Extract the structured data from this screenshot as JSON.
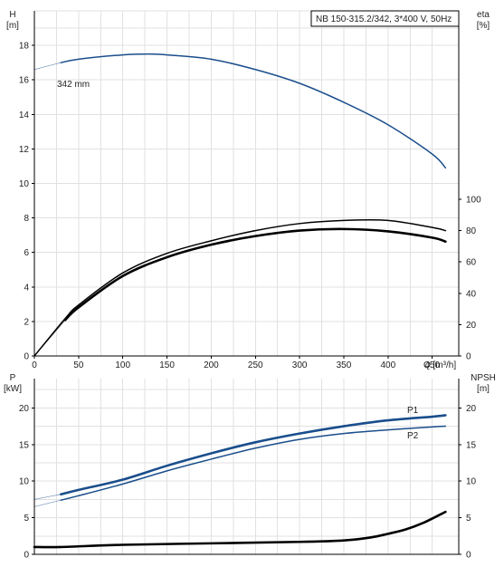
{
  "chart_data": [
    {
      "type": "line",
      "panel": "head-efficiency",
      "title": "NB 150-315.2/342, 3*400 V, 50Hz",
      "xlabel": "Q [m³/h]",
      "xlim": [
        0,
        480
      ],
      "xticks": [
        0,
        50,
        100,
        150,
        200,
        250,
        300,
        350,
        400,
        450
      ],
      "ylabel_left": "H\n[m]",
      "ylim_left": [
        0,
        20
      ],
      "yticks_left": [
        0,
        2,
        4,
        6,
        8,
        10,
        12,
        14,
        16,
        18
      ],
      "ylabel_right": "eta\n[%]",
      "ylim_right": [
        0,
        100
      ],
      "yticks_right": [
        0,
        20,
        40,
        60,
        80,
        100
      ],
      "grid": true,
      "series": [
        {
          "name": "342 mm",
          "axis": "left",
          "color": "#1a4e8c",
          "x": [
            0,
            30,
            50,
            100,
            130,
            150,
            200,
            250,
            300,
            350,
            400,
            450,
            465
          ],
          "y": [
            16.6,
            17.0,
            17.2,
            17.45,
            17.5,
            17.45,
            17.2,
            16.6,
            15.8,
            14.7,
            13.4,
            11.7,
            10.9
          ],
          "dashed_x_max": 30
        },
        {
          "name": "",
          "axis": "right",
          "color": "#000000",
          "x": [
            0,
            35,
            50,
            100,
            150,
            200,
            250,
            300,
            350,
            400,
            450,
            465
          ],
          "y": [
            0,
            23,
            31,
            51,
            63,
            71,
            76.5,
            80,
            81,
            79.5,
            75.5,
            73
          ],
          "dashed_x_max": 35,
          "bold": true
        },
        {
          "name": "",
          "axis": "right",
          "color": "#000000",
          "x": [
            0,
            35,
            50,
            100,
            150,
            200,
            250,
            300,
            350,
            400,
            450,
            465
          ],
          "y": [
            0,
            24,
            32.5,
            53,
            65.5,
            73.5,
            80,
            84.5,
            86.5,
            86.5,
            82,
            80
          ]
        }
      ]
    },
    {
      "type": "line",
      "panel": "power-npsh",
      "xlim": [
        0,
        480
      ],
      "ylabel_left": "P\n[kW]",
      "ylim_left": [
        0,
        24
      ],
      "yticks_left": [
        0,
        5,
        10,
        15,
        20
      ],
      "ylabel_right": "NPSH\n[m]",
      "ylim_right": [
        0,
        24
      ],
      "yticks_right": [
        0,
        5,
        10,
        15,
        20
      ],
      "grid": true,
      "series": [
        {
          "name": "P1",
          "axis": "left",
          "color": "#1a4e8c",
          "bold": true,
          "x": [
            0,
            30,
            50,
            100,
            150,
            200,
            250,
            300,
            350,
            400,
            450,
            465
          ],
          "y": [
            7.5,
            8.2,
            8.8,
            10.2,
            12.1,
            13.8,
            15.3,
            16.5,
            17.5,
            18.3,
            18.8,
            19.0
          ],
          "dashed_x_max": 30
        },
        {
          "name": "P2",
          "axis": "left",
          "color": "#1a4e8c",
          "x": [
            0,
            30,
            50,
            100,
            150,
            200,
            250,
            300,
            350,
            400,
            450,
            465
          ],
          "y": [
            6.5,
            7.4,
            8.0,
            9.6,
            11.4,
            13.0,
            14.5,
            15.7,
            16.5,
            17.0,
            17.4,
            17.5
          ],
          "dashed_x_max": 30
        },
        {
          "name": "",
          "axis": "right",
          "color": "#000000",
          "bold": true,
          "x": [
            0,
            30,
            100,
            200,
            300,
            350,
            380,
            400,
            420,
            440,
            465
          ],
          "y": [
            1.0,
            1.0,
            1.3,
            1.5,
            1.7,
            1.9,
            2.3,
            2.8,
            3.4,
            4.3,
            5.8
          ]
        }
      ]
    }
  ]
}
